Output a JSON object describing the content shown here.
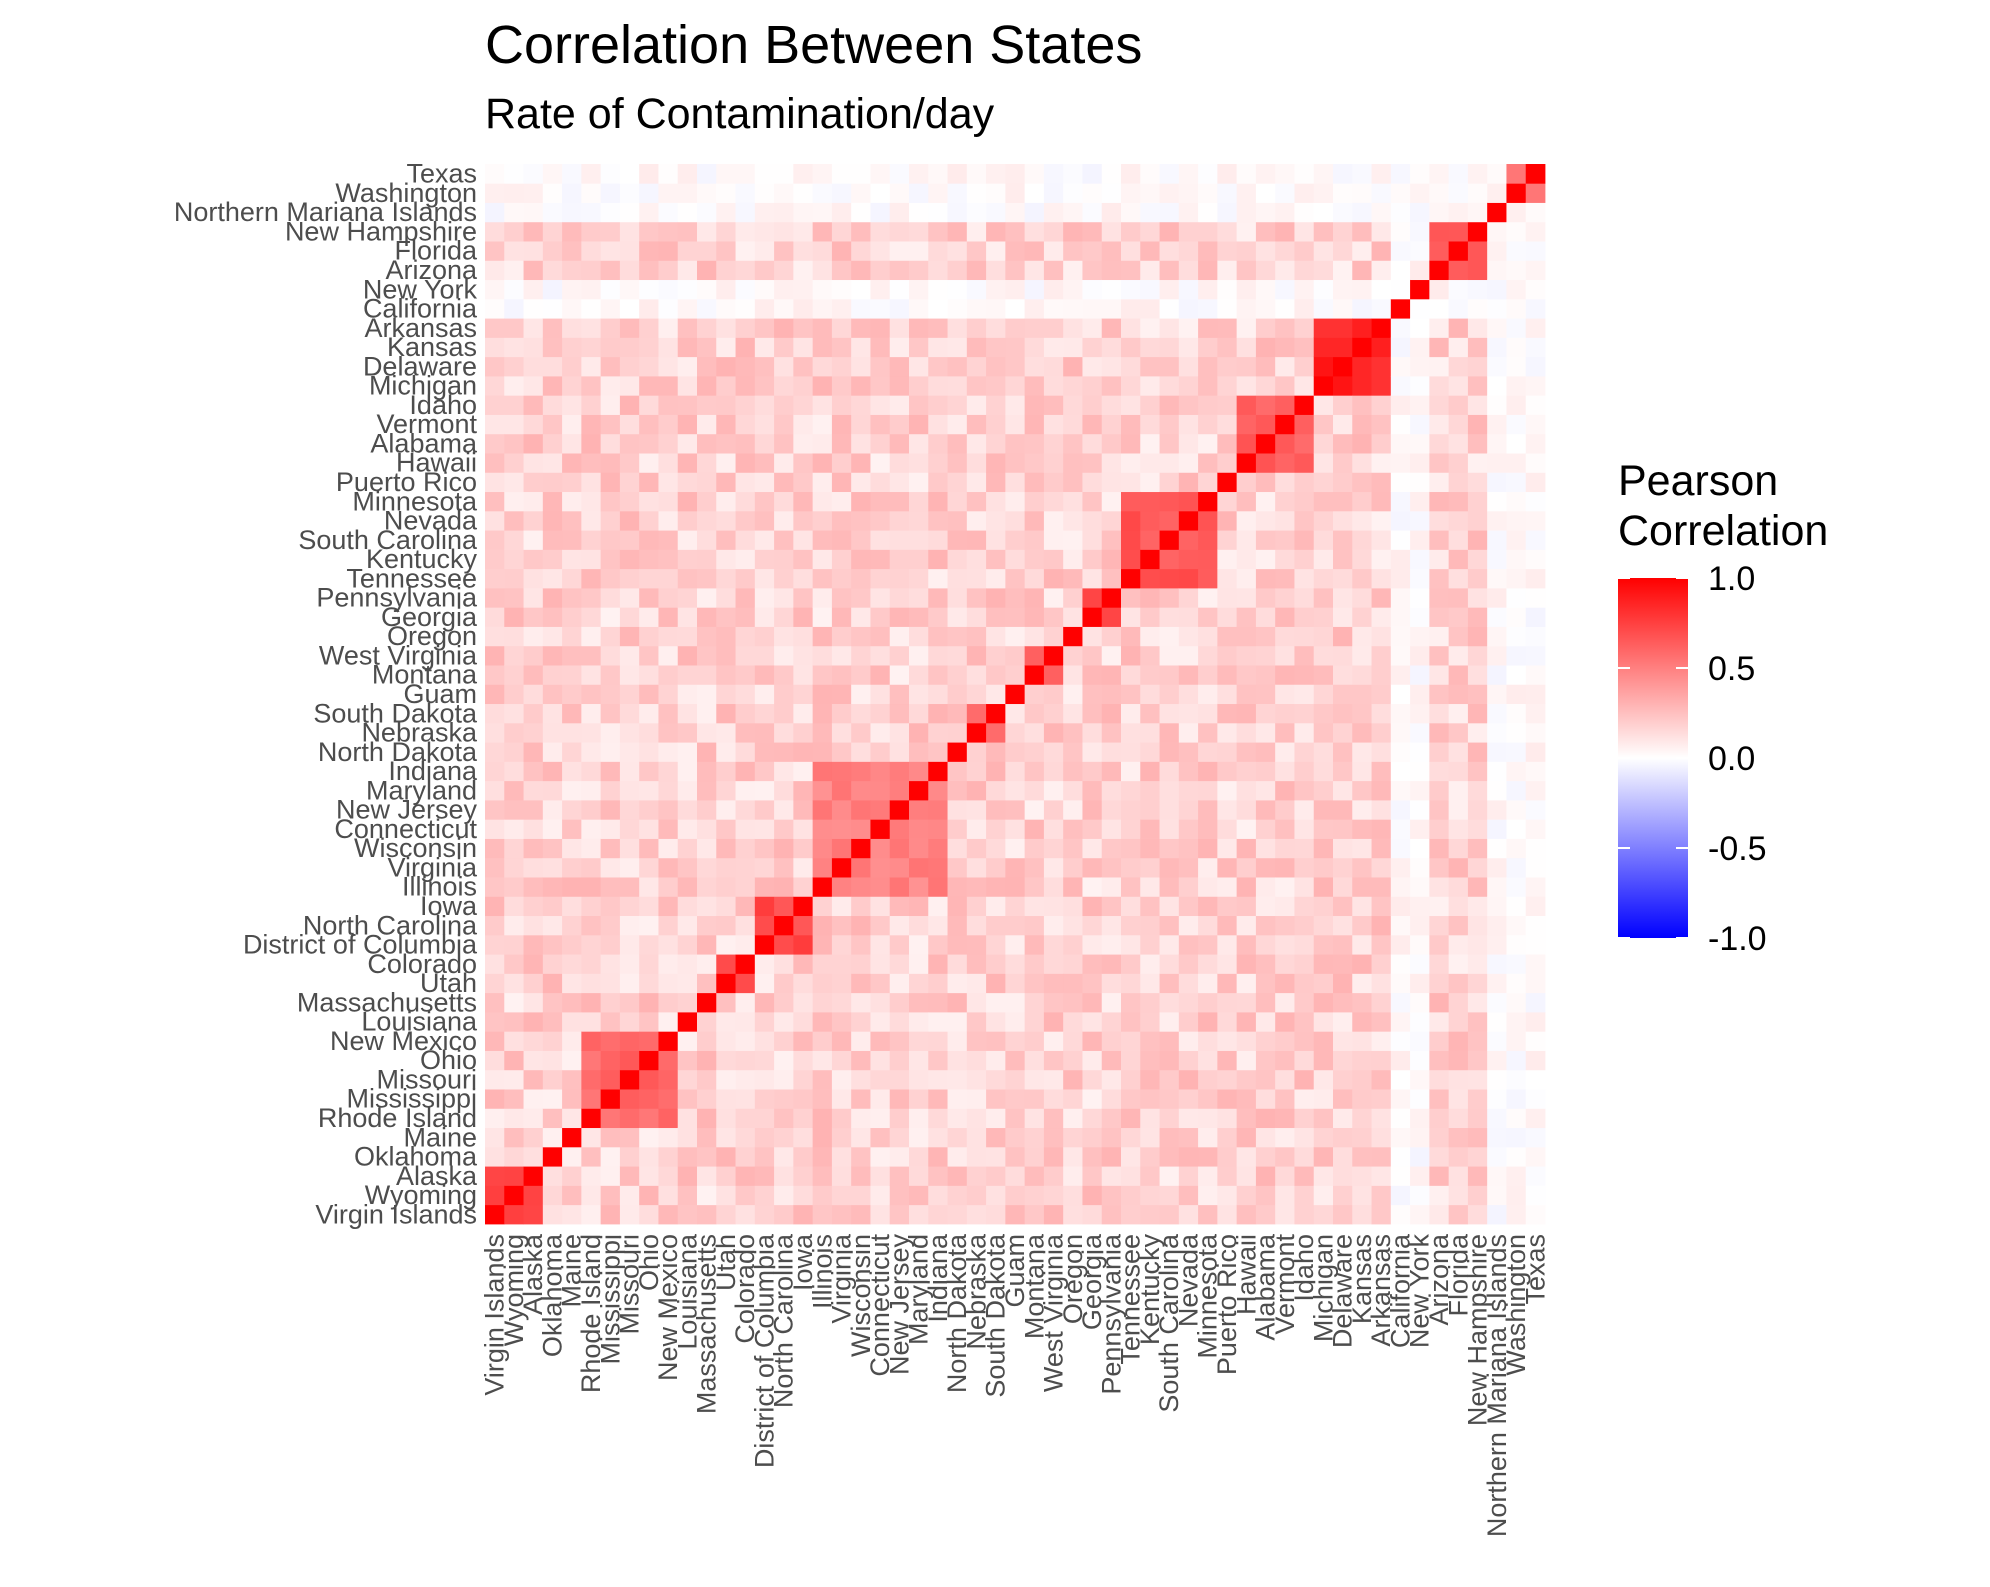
{
  "chart_data": {
    "type": "heatmap",
    "title": "Correlation Between States",
    "subtitle": "Rate of Contamination/day",
    "xlabel": "",
    "ylabel": "",
    "legend": {
      "title_lines": [
        "Pearson",
        "Correlation"
      ],
      "ticks": [
        1.0,
        0.5,
        0.0,
        -0.5,
        -1.0
      ],
      "tick_labels": [
        "1.0",
        "0.5",
        "0.0",
        "-0.5",
        "-1.0"
      ],
      "range": [
        -1,
        1
      ],
      "placement": "right"
    },
    "colors": {
      "low": "#0000ff",
      "mid": "#ffffff",
      "high": "#ff0000",
      "axis_text": "#4d4d4d"
    },
    "categories": [
      "Virgin Islands",
      "Wyoming",
      "Alaska",
      "Oklahoma",
      "Maine",
      "Rhode Island",
      "Mississippi",
      "Missouri",
      "Ohio",
      "New Mexico",
      "Louisiana",
      "Massachusetts",
      "Utah",
      "Colorado",
      "District of Columbia",
      "North Carolina",
      "Iowa",
      "Illinois",
      "Virginia",
      "Wisconsin",
      "Connecticut",
      "New Jersey",
      "Maryland",
      "Indiana",
      "North Dakota",
      "Nebraska",
      "South Dakota",
      "Guam",
      "Montana",
      "West Virginia",
      "Oregon",
      "Georgia",
      "Pennsylvania",
      "Tennessee",
      "Kentucky",
      "South Carolina",
      "Nevada",
      "Minnesota",
      "Puerto Rico",
      "Hawaii",
      "Alabama",
      "Vermont",
      "Idaho",
      "Michigan",
      "Delaware",
      "Kansas",
      "Arkansas",
      "California",
      "New York",
      "Arizona",
      "Florida",
      "New Hampshire",
      "Northern Mariana Islands",
      "Washington",
      "Texas"
    ],
    "blocks": [
      {
        "indices": [
          0,
          1,
          2
        ],
        "value": 0.8
      },
      {
        "indices": [
          5,
          6,
          7,
          8,
          9
        ],
        "value": 0.6
      },
      {
        "indices": [
          12,
          13
        ],
        "value": 0.75
      },
      {
        "indices": [
          14,
          15,
          16
        ],
        "value": 0.7
      },
      {
        "indices": [
          17,
          18,
          19,
          20,
          21,
          22,
          23
        ],
        "value": 0.5
      },
      {
        "indices": [
          25,
          26
        ],
        "value": 0.55
      },
      {
        "indices": [
          28,
          29
        ],
        "value": 0.65
      },
      {
        "indices": [
          31,
          32
        ],
        "value": 0.7
      },
      {
        "indices": [
          33,
          34,
          35,
          36,
          37
        ],
        "value": 0.65
      },
      {
        "indices": [
          39,
          40,
          41,
          42
        ],
        "value": 0.6
      },
      {
        "indices": [
          43,
          44,
          45,
          46
        ],
        "value": 0.85
      },
      {
        "indices": [
          49,
          50,
          51
        ],
        "value": 0.65
      },
      {
        "indices": [
          53,
          54
        ],
        "value": 0.6
      }
    ],
    "weak_rows": [
      47,
      48,
      52,
      53,
      54
    ],
    "background_range": [
      0.05,
      0.3
    ],
    "diagonal": 1.0
  }
}
